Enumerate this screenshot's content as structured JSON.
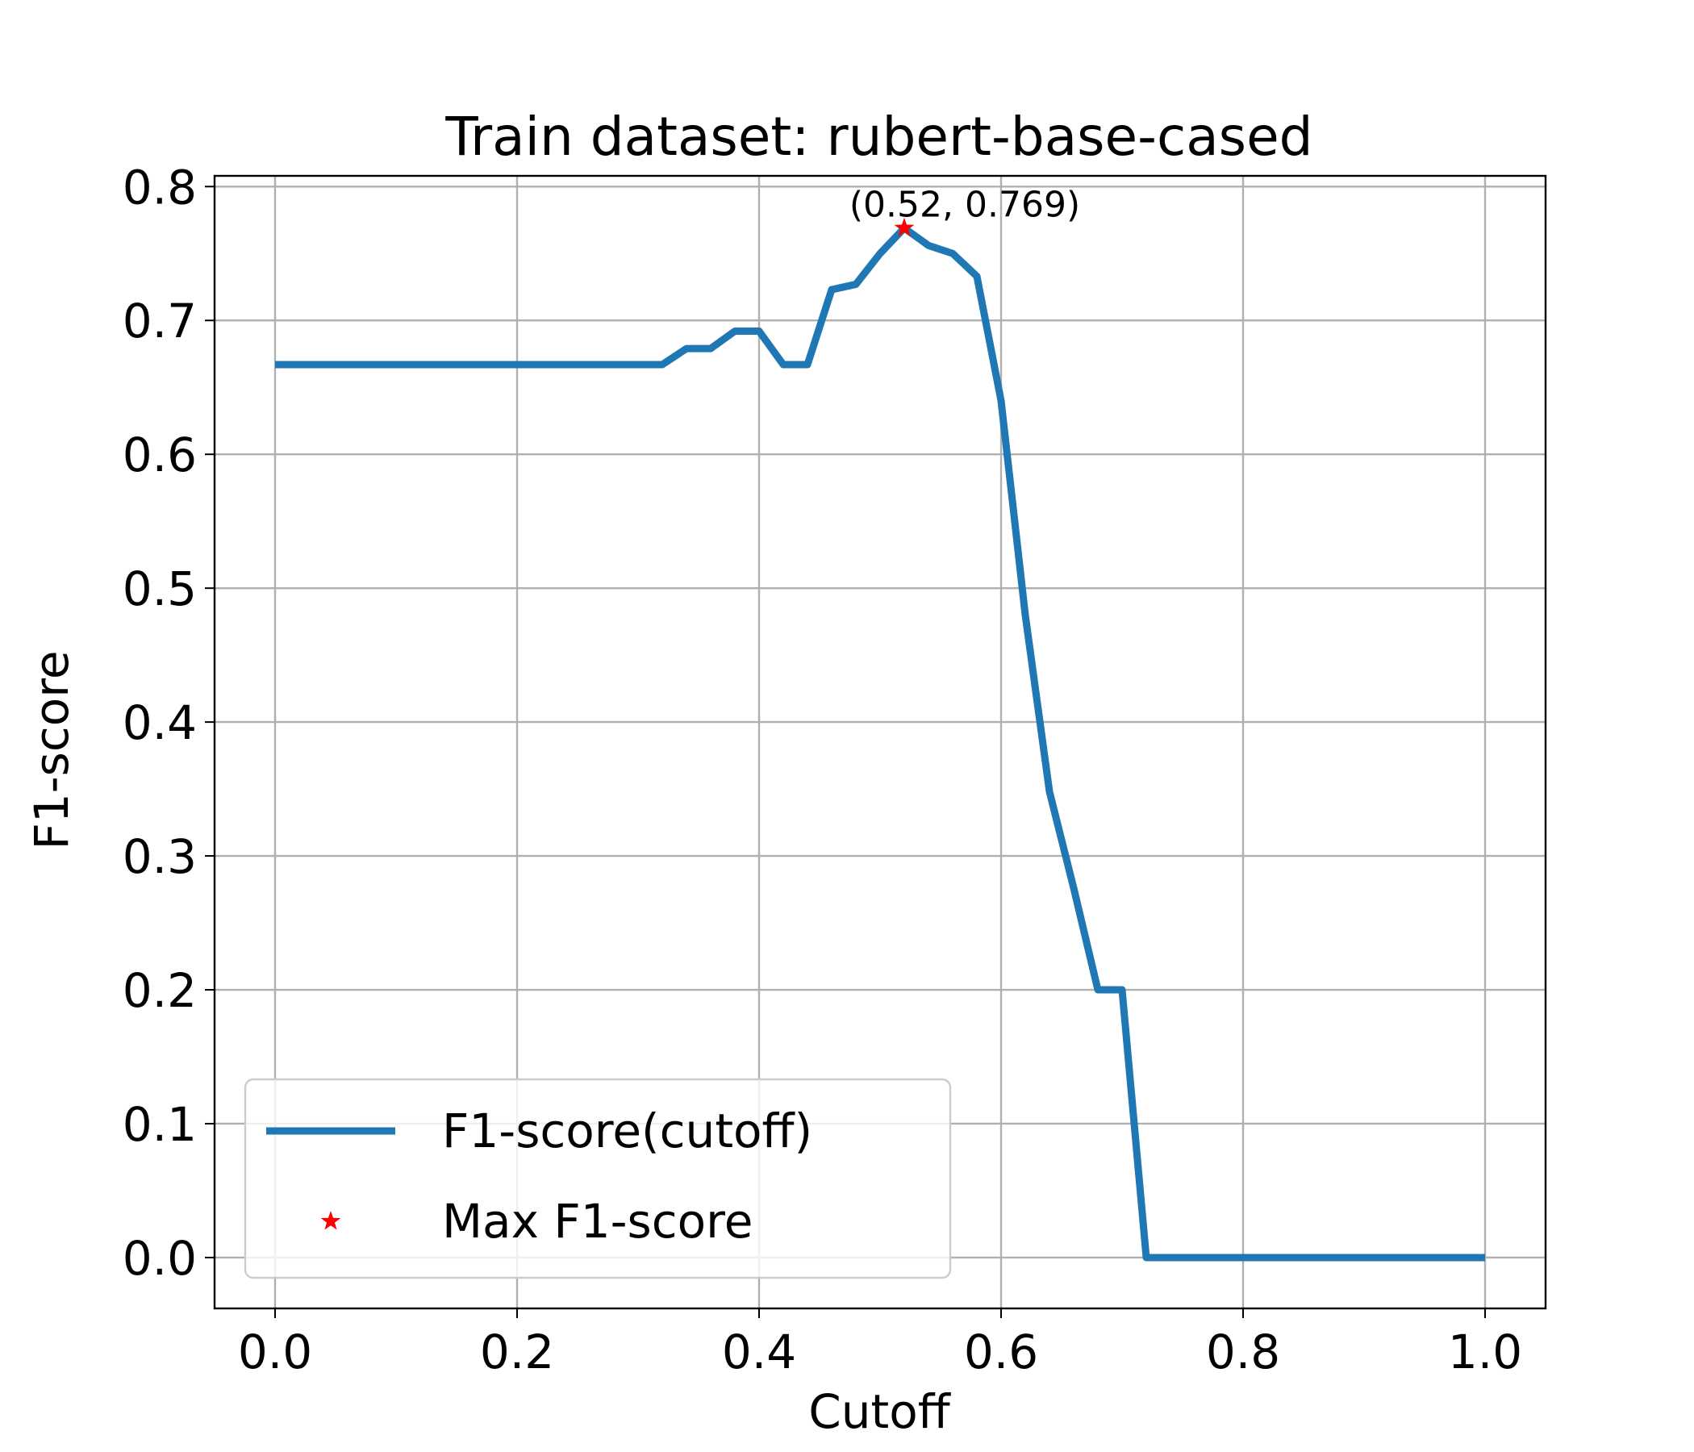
{
  "chart_data": {
    "type": "line",
    "title": "Train dataset: rubert-base-cased",
    "xlabel": "Cutoff",
    "ylabel": "F1-score",
    "xlim": [
      -0.05,
      1.05
    ],
    "ylim": [
      -0.038,
      0.808
    ],
    "xticks": [
      "0.0",
      "0.2",
      "0.4",
      "0.6",
      "0.8",
      "1.0"
    ],
    "yticks": [
      "0.0",
      "0.1",
      "0.2",
      "0.3",
      "0.4",
      "0.5",
      "0.6",
      "0.7",
      "0.8"
    ],
    "grid": true,
    "legend": {
      "placement": "lower-left",
      "entries": [
        "F1-score(cutoff)",
        "Max F1-score"
      ]
    },
    "series": [
      {
        "name": "F1-score(cutoff)",
        "color": "#1f77b4",
        "x": [
          0.0,
          0.02,
          0.04,
          0.06,
          0.08,
          0.1,
          0.12,
          0.14,
          0.16,
          0.18,
          0.2,
          0.22,
          0.24,
          0.26,
          0.28,
          0.3,
          0.32,
          0.34,
          0.36,
          0.38,
          0.4,
          0.42,
          0.44,
          0.46,
          0.48,
          0.5,
          0.52,
          0.54,
          0.56,
          0.58,
          0.6,
          0.62,
          0.64,
          0.66,
          0.68,
          0.7,
          0.72,
          0.74,
          0.76,
          0.78,
          0.8,
          0.82,
          0.84,
          0.86,
          0.88,
          0.9,
          0.92,
          0.94,
          0.96,
          0.98,
          1.0
        ],
        "y": [
          0.667,
          0.667,
          0.667,
          0.667,
          0.667,
          0.667,
          0.667,
          0.667,
          0.667,
          0.667,
          0.667,
          0.667,
          0.667,
          0.667,
          0.667,
          0.667,
          0.667,
          0.679,
          0.679,
          0.692,
          0.692,
          0.667,
          0.667,
          0.723,
          0.727,
          0.75,
          0.769,
          0.756,
          0.75,
          0.733,
          0.64,
          0.48,
          0.348,
          0.276,
          0.2,
          0.2,
          0.0,
          0.0,
          0.0,
          0.0,
          0.0,
          0.0,
          0.0,
          0.0,
          0.0,
          0.0,
          0.0,
          0.0,
          0.0,
          0.0,
          0.0
        ]
      }
    ],
    "max_point": {
      "name": "Max F1-score",
      "x": 0.52,
      "y": 0.769,
      "color": "#ff0000",
      "marker": "star",
      "annotation": "(0.52, 0.769)"
    }
  }
}
